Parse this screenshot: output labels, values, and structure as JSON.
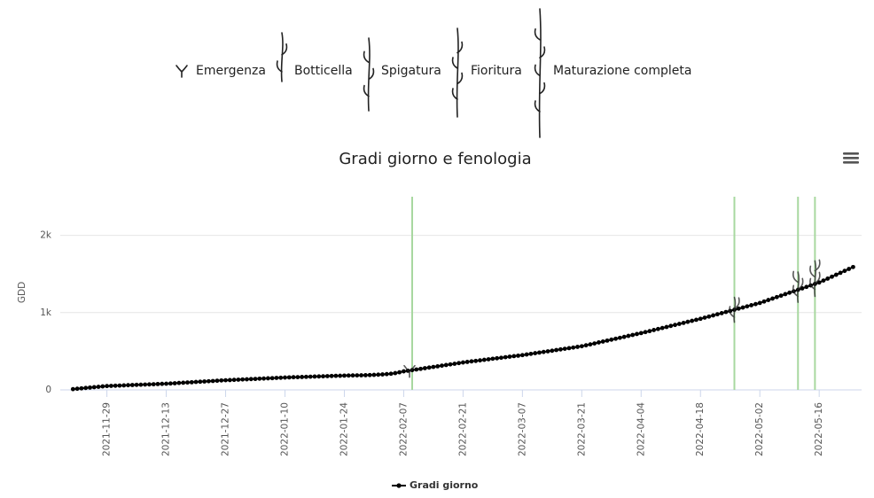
{
  "chart_data": {
    "type": "line",
    "title": "Gradi giorno e fenologia",
    "stages": [
      "Emergenza",
      "Botticella",
      "Spigatura",
      "Fioritura",
      "Maturazione completa"
    ],
    "y_label": "GDD",
    "xlim": [
      "2021-11-18",
      "2022-05-26"
    ],
    "xticks": [
      "2021-11-29",
      "2021-12-13",
      "2021-12-27",
      "2022-01-10",
      "2022-01-24",
      "2022-02-07",
      "2022-02-21",
      "2022-03-07",
      "2022-03-21",
      "2022-04-04",
      "2022-04-18",
      "2022-05-02",
      "2022-05-16"
    ],
    "ylim": [
      0,
      2500
    ],
    "yticks": [
      0,
      {
        "value": 1000,
        "label": "1k"
      },
      {
        "value": 2000,
        "label": "2k"
      }
    ],
    "grid": true,
    "plot_lines": {
      "color": "#a8d8a0",
      "x": [
        "2022-02-09",
        "2022-04-26",
        "2022-05-11",
        "2022-05-15"
      ]
    },
    "x": [
      "2021-11-21",
      "2021-11-22",
      "2021-11-23",
      "2021-11-24",
      "2021-11-25",
      "2021-11-26",
      "2021-11-27",
      "2021-11-28",
      "2021-11-29",
      "2021-11-30",
      "2021-12-01",
      "2021-12-02",
      "2021-12-03",
      "2021-12-04",
      "2021-12-05",
      "2021-12-06",
      "2021-12-07",
      "2021-12-08",
      "2021-12-09",
      "2021-12-10",
      "2021-12-11",
      "2021-12-12",
      "2021-12-13",
      "2021-12-14",
      "2021-12-15",
      "2021-12-16",
      "2021-12-17",
      "2021-12-18",
      "2021-12-19",
      "2021-12-20",
      "2021-12-21",
      "2021-12-22",
      "2021-12-23",
      "2021-12-24",
      "2021-12-25",
      "2021-12-26",
      "2021-12-27",
      "2021-12-28",
      "2021-12-29",
      "2021-12-30",
      "2021-12-31",
      "2022-01-01",
      "2022-01-02",
      "2022-01-03",
      "2022-01-04",
      "2022-01-05",
      "2022-01-06",
      "2022-01-07",
      "2022-01-08",
      "2022-01-09",
      "2022-01-10",
      "2022-01-11",
      "2022-01-12",
      "2022-01-13",
      "2022-01-14",
      "2022-01-15",
      "2022-01-16",
      "2022-01-17",
      "2022-01-18",
      "2022-01-19",
      "2022-01-20",
      "2022-01-21",
      "2022-01-22",
      "2022-01-23",
      "2022-01-24",
      "2022-01-25",
      "2022-01-26",
      "2022-01-27",
      "2022-01-28",
      "2022-01-29",
      "2022-01-30",
      "2022-01-31",
      "2022-02-01",
      "2022-02-02",
      "2022-02-03",
      "2022-02-04",
      "2022-02-05",
      "2022-02-06",
      "2022-02-07",
      "2022-02-08",
      "2022-02-09",
      "2022-02-10",
      "2022-02-11",
      "2022-02-12",
      "2022-02-13",
      "2022-02-14",
      "2022-02-15",
      "2022-02-16",
      "2022-02-17",
      "2022-02-18",
      "2022-02-19",
      "2022-02-20",
      "2022-02-21",
      "2022-02-22",
      "2022-02-23",
      "2022-02-24",
      "2022-02-25",
      "2022-02-26",
      "2022-02-27",
      "2022-02-28",
      "2022-03-01",
      "2022-03-02",
      "2022-03-03",
      "2022-03-04",
      "2022-03-05",
      "2022-03-06",
      "2022-03-07",
      "2022-03-08",
      "2022-03-09",
      "2022-03-10",
      "2022-03-11",
      "2022-03-12",
      "2022-03-13",
      "2022-03-14",
      "2022-03-15",
      "2022-03-16",
      "2022-03-17",
      "2022-03-18",
      "2022-03-19",
      "2022-03-20",
      "2022-03-21",
      "2022-03-22",
      "2022-03-23",
      "2022-03-24",
      "2022-03-25",
      "2022-03-26",
      "2022-03-27",
      "2022-03-28",
      "2022-03-29",
      "2022-03-30",
      "2022-03-31",
      "2022-04-01",
      "2022-04-02",
      "2022-04-03",
      "2022-04-04",
      "2022-04-05",
      "2022-04-06",
      "2022-04-07",
      "2022-04-08",
      "2022-04-09",
      "2022-04-10",
      "2022-04-11",
      "2022-04-12",
      "2022-04-13",
      "2022-04-14",
      "2022-04-15",
      "2022-04-16",
      "2022-04-17",
      "2022-04-18",
      "2022-04-19",
      "2022-04-20",
      "2022-04-21",
      "2022-04-22",
      "2022-04-23",
      "2022-04-24",
      "2022-04-25",
      "2022-04-26",
      "2022-04-27",
      "2022-04-28",
      "2022-04-29",
      "2022-04-30",
      "2022-05-01",
      "2022-05-02",
      "2022-05-03",
      "2022-05-04",
      "2022-05-05",
      "2022-05-06",
      "2022-05-07",
      "2022-05-08",
      "2022-05-09",
      "2022-05-10",
      "2022-05-11",
      "2022-05-12",
      "2022-05-13",
      "2022-05-14",
      "2022-05-15",
      "2022-05-16",
      "2022-05-17",
      "2022-05-18",
      "2022-05-19",
      "2022-05-20",
      "2022-05-21",
      "2022-05-22",
      "2022-05-23",
      "2022-05-24"
    ],
    "series": [
      {
        "name": "Gradi giorno",
        "color": "#000000",
        "values": [
          10,
          15,
          20,
          25,
          30,
          35,
          40,
          45,
          50,
          52,
          54,
          56,
          58,
          61,
          63,
          65,
          67,
          69,
          71,
          73,
          76,
          78,
          80,
          83,
          86,
          90,
          93,
          96,
          99,
          103,
          106,
          109,
          112,
          115,
          119,
          122,
          125,
          127,
          130,
          132,
          135,
          137,
          140,
          142,
          145,
          147,
          150,
          152,
          155,
          157,
          160,
          162,
          164,
          165,
          167,
          169,
          171,
          173,
          174,
          176,
          178,
          180,
          182,
          183,
          185,
          186,
          187,
          188,
          189,
          190,
          192,
          194,
          197,
          200,
          204,
          209,
          217,
          228,
          240,
          248,
          256,
          264,
          272,
          281,
          289,
          297,
          305,
          314,
          322,
          330,
          338,
          347,
          355,
          362,
          369,
          375,
          382,
          389,
          396,
          403,
          409,
          416,
          423,
          430,
          437,
          443,
          450,
          458,
          466,
          475,
          483,
          491,
          499,
          507,
          516,
          524,
          532,
          540,
          548,
          557,
          565,
          577,
          589,
          601,
          614,
          626,
          638,
          650,
          662,
          674,
          686,
          699,
          711,
          723,
          735,
          748,
          761,
          775,
          788,
          801,
          814,
          828,
          841,
          854,
          867,
          881,
          894,
          907,
          920,
          935,
          949,
          964,
          979,
          993,
          1008,
          1022,
          1037,
          1052,
          1066,
          1081,
          1096,
          1110,
          1125,
          1144,
          1163,
          1182,
          1201,
          1220,
          1239,
          1258,
          1276,
          1295,
          1314,
          1333,
          1352,
          1371,
          1390,
          1415,
          1440,
          1465,
          1490,
          1515,
          1540,
          1565,
          1590
        ]
      }
    ]
  }
}
